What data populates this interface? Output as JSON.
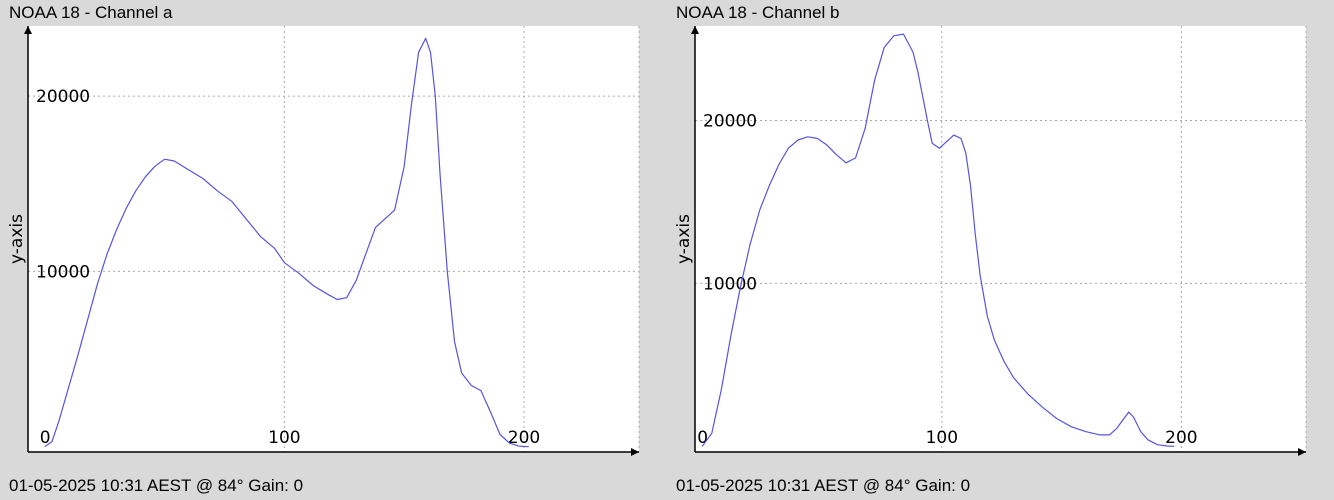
{
  "charts": [
    {
      "title": "NOAA 18 - Channel a",
      "footer": "01-05-2025 10:31 AEST @ 84° Gain: 0",
      "chart_data": {
        "type": "line",
        "title": "NOAA 18 - Channel a",
        "xlabel": "",
        "ylabel": "y-axis",
        "xlim": [
          -7,
          248
        ],
        "ylim": [
          -300,
          24000
        ],
        "xticks": [
          0,
          100,
          200
        ],
        "yticks": [
          10000,
          20000
        ],
        "grid": true,
        "series": [
          {
            "color": "#5555dd",
            "x": [
              0,
              3,
              6,
              10,
              14,
              18,
              22,
              26,
              30,
              34,
              38,
              42,
              46,
              50,
              54,
              60,
              66,
              72,
              78,
              84,
              90,
              96,
              100,
              106,
              112,
              118,
              122,
              126,
              130,
              134,
              138,
              142,
              146,
              150,
              153,
              156,
              159,
              161,
              163,
              165,
              168,
              171,
              174,
              178,
              182,
              186,
              190,
              194,
              198,
              202
            ],
            "y": [
              0,
              300,
              1500,
              3400,
              5300,
              7300,
              9300,
              11000,
              12400,
              13600,
              14600,
              15400,
              16000,
              16400,
              16300,
              15800,
              15300,
              14600,
              14000,
              13000,
              12000,
              11300,
              10500,
              9900,
              9200,
              8700,
              8400,
              8500,
              9500,
              11000,
              12500,
              13000,
              13500,
              16000,
              19500,
              22500,
              23300,
              22500,
              20000,
              15500,
              10000,
              6000,
              4200,
              3500,
              3200,
              2000,
              700,
              200,
              30,
              0
            ]
          }
        ]
      }
    },
    {
      "title": "NOAA 18 - Channel b",
      "footer": "01-05-2025 10:31 AEST @ 84° Gain: 0",
      "chart_data": {
        "type": "line",
        "title": "NOAA 18 - Channel b",
        "xlabel": "",
        "ylabel": "y-axis",
        "xlim": [
          -3,
          252
        ],
        "ylim": [
          -350,
          25800
        ],
        "xticks": [
          0,
          100,
          200
        ],
        "yticks": [
          10000,
          20000
        ],
        "grid": true,
        "series": [
          {
            "color": "#5555dd",
            "x": [
              0,
              4,
              8,
              12,
              16,
              20,
              24,
              28,
              32,
              36,
              40,
              44,
              48,
              52,
              56,
              60,
              64,
              68,
              72,
              76,
              80,
              84,
              88,
              90,
              92,
              94,
              96,
              99,
              102,
              105,
              108,
              110,
              112,
              114,
              116,
              119,
              122,
              126,
              130,
              136,
              142,
              148,
              154,
              160,
              166,
              170,
              173,
              176,
              178,
              180,
              183,
              186,
              190,
              194,
              197
            ],
            "y": [
              0,
              800,
              3500,
              6800,
              9800,
              12400,
              14500,
              16000,
              17300,
              18300,
              18800,
              19000,
              18900,
              18500,
              17900,
              17400,
              17700,
              19500,
              22500,
              24500,
              25200,
              25300,
              24200,
              23000,
              21500,
              20000,
              18600,
              18300,
              18700,
              19100,
              18900,
              18000,
              16000,
              13000,
              10500,
              8000,
              6500,
              5200,
              4200,
              3200,
              2400,
              1700,
              1200,
              900,
              700,
              700,
              1100,
              1700,
              2100,
              1800,
              900,
              400,
              100,
              20,
              0
            ]
          }
        ]
      }
    }
  ]
}
